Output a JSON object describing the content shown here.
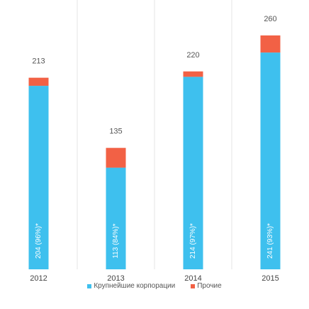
{
  "chart_data": {
    "type": "bar",
    "stacked": true,
    "categories": [
      "2012",
      "2013",
      "2014",
      "2015"
    ],
    "totals": [
      213,
      135,
      220,
      260
    ],
    "bar_inside_labels": [
      "204 (96%)*",
      "113 (84%)*",
      "214 (97%)*",
      "241 (93%)*"
    ],
    "series": [
      {
        "name": "Крупнейшие корпорации",
        "values": [
          204,
          113,
          214,
          241
        ],
        "color": "#3ec0ee"
      },
      {
        "name": "Прочие",
        "values": [
          9,
          22,
          6,
          19
        ],
        "color": "#f26145"
      }
    ],
    "ylim": [
      0,
      260
    ],
    "grid": false,
    "legend_position": "bottom"
  }
}
